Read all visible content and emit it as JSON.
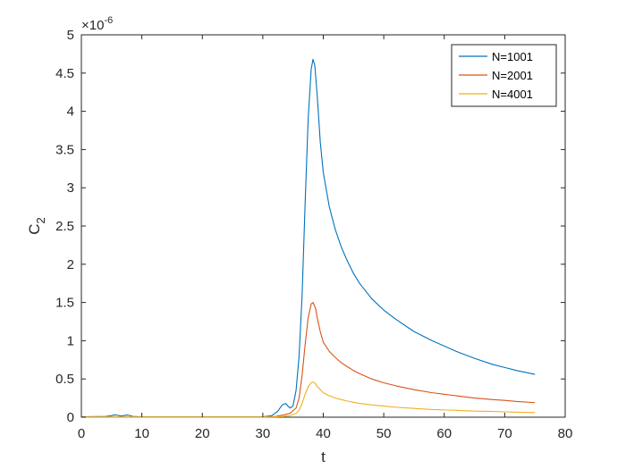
{
  "chart_data": {
    "type": "line",
    "title": "",
    "xlabel": "t",
    "ylabel_base": "C",
    "ylabel_subscript": "2",
    "y_exponent_prefix": "×10",
    "y_exponent_power": "-6",
    "xlim": [
      0,
      80
    ],
    "ylim": [
      0,
      5
    ],
    "xticks": [
      0,
      10,
      20,
      30,
      40,
      50,
      60,
      70,
      80
    ],
    "yticks": [
      0,
      0.5,
      1,
      1.5,
      2,
      2.5,
      3,
      3.5,
      4,
      4.5,
      5
    ],
    "grid": false,
    "legend": "top-right",
    "series": [
      {
        "name": "N=1001",
        "color": "#0072BD",
        "points": [
          [
            0,
            0.005
          ],
          [
            4,
            0.01
          ],
          [
            5,
            0.02
          ],
          [
            5.5,
            0.03
          ],
          [
            6,
            0.025
          ],
          [
            6.5,
            0.015
          ],
          [
            7,
            0.02
          ],
          [
            7.5,
            0.028
          ],
          [
            8,
            0.022
          ],
          [
            8.5,
            0.01
          ],
          [
            10,
            0.005
          ],
          [
            20,
            0.005
          ],
          [
            30,
            0.005
          ],
          [
            31.5,
            0.02
          ],
          [
            32.5,
            0.08
          ],
          [
            33.2,
            0.16
          ],
          [
            33.8,
            0.18
          ],
          [
            34.2,
            0.14
          ],
          [
            34.6,
            0.12
          ],
          [
            35,
            0.15
          ],
          [
            35.5,
            0.35
          ],
          [
            36,
            0.8
          ],
          [
            36.5,
            1.6
          ],
          [
            37,
            2.8
          ],
          [
            37.5,
            3.9
          ],
          [
            38,
            4.55
          ],
          [
            38.3,
            4.68
          ],
          [
            38.6,
            4.6
          ],
          [
            39,
            4.2
          ],
          [
            39.5,
            3.6
          ],
          [
            40,
            3.2
          ],
          [
            41,
            2.75
          ],
          [
            42,
            2.45
          ],
          [
            43,
            2.22
          ],
          [
            44,
            2.04
          ],
          [
            45,
            1.88
          ],
          [
            46,
            1.75
          ],
          [
            48,
            1.55
          ],
          [
            50,
            1.4
          ],
          [
            52,
            1.28
          ],
          [
            55,
            1.12
          ],
          [
            58,
            1.0
          ],
          [
            60,
            0.93
          ],
          [
            62,
            0.86
          ],
          [
            65,
            0.77
          ],
          [
            68,
            0.69
          ],
          [
            70,
            0.65
          ],
          [
            72,
            0.61
          ],
          [
            75,
            0.56
          ]
        ]
      },
      {
        "name": "N=2001",
        "color": "#D95319",
        "points": [
          [
            0,
            0.003
          ],
          [
            10,
            0.003
          ],
          [
            20,
            0.003
          ],
          [
            30,
            0.003
          ],
          [
            32,
            0.008
          ],
          [
            33.5,
            0.03
          ],
          [
            34.5,
            0.05
          ],
          [
            35.5,
            0.12
          ],
          [
            36,
            0.25
          ],
          [
            36.5,
            0.55
          ],
          [
            37,
            0.95
          ],
          [
            37.5,
            1.3
          ],
          [
            38,
            1.48
          ],
          [
            38.3,
            1.5
          ],
          [
            38.7,
            1.43
          ],
          [
            39,
            1.3
          ],
          [
            39.5,
            1.12
          ],
          [
            40,
            0.98
          ],
          [
            41,
            0.86
          ],
          [
            42,
            0.78
          ],
          [
            43,
            0.71
          ],
          [
            44,
            0.66
          ],
          [
            45,
            0.61
          ],
          [
            46,
            0.57
          ],
          [
            48,
            0.5
          ],
          [
            50,
            0.45
          ],
          [
            52,
            0.41
          ],
          [
            55,
            0.36
          ],
          [
            58,
            0.32
          ],
          [
            60,
            0.3
          ],
          [
            62,
            0.28
          ],
          [
            65,
            0.25
          ],
          [
            68,
            0.23
          ],
          [
            70,
            0.22
          ],
          [
            72,
            0.205
          ],
          [
            75,
            0.19
          ]
        ]
      },
      {
        "name": "N=4001",
        "color": "#EDB120",
        "points": [
          [
            0,
            0.002
          ],
          [
            10,
            0.002
          ],
          [
            20,
            0.002
          ],
          [
            30,
            0.002
          ],
          [
            32,
            0.004
          ],
          [
            33.5,
            0.01
          ],
          [
            34.5,
            0.02
          ],
          [
            35.5,
            0.05
          ],
          [
            36,
            0.09
          ],
          [
            36.5,
            0.18
          ],
          [
            37,
            0.3
          ],
          [
            37.5,
            0.4
          ],
          [
            38,
            0.45
          ],
          [
            38.3,
            0.46
          ],
          [
            38.7,
            0.44
          ],
          [
            39,
            0.4
          ],
          [
            39.5,
            0.36
          ],
          [
            40,
            0.32
          ],
          [
            41,
            0.28
          ],
          [
            42,
            0.25
          ],
          [
            43,
            0.23
          ],
          [
            44,
            0.21
          ],
          [
            45,
            0.195
          ],
          [
            46,
            0.18
          ],
          [
            48,
            0.16
          ],
          [
            50,
            0.145
          ],
          [
            52,
            0.13
          ],
          [
            55,
            0.115
          ],
          [
            58,
            0.1
          ],
          [
            60,
            0.095
          ],
          [
            62,
            0.09
          ],
          [
            65,
            0.08
          ],
          [
            68,
            0.075
          ],
          [
            70,
            0.07
          ],
          [
            72,
            0.065
          ],
          [
            75,
            0.06
          ]
        ]
      }
    ]
  }
}
